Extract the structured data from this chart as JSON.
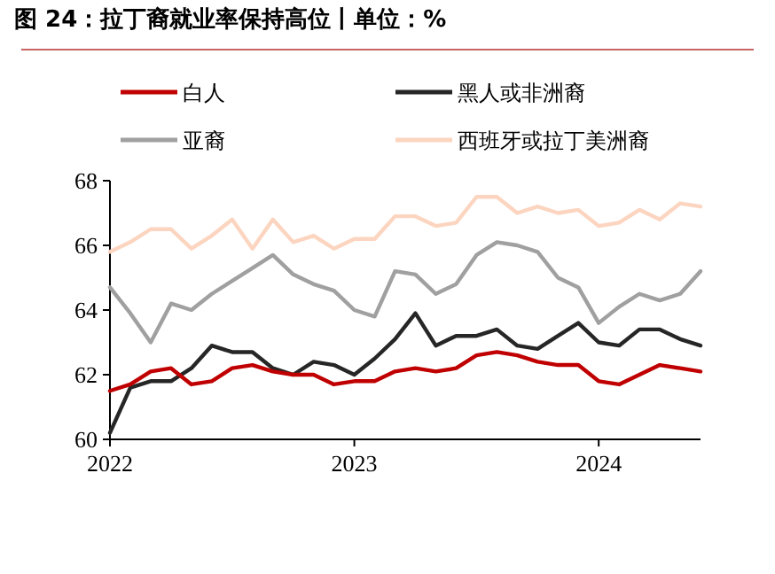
{
  "chart_data": {
    "type": "line",
    "title": "图 24：拉丁裔就业率保持高位丨单位：%",
    "x": [
      "2022-01",
      "2022-02",
      "2022-03",
      "2022-04",
      "2022-05",
      "2022-06",
      "2022-07",
      "2022-08",
      "2022-09",
      "2022-10",
      "2022-11",
      "2022-12",
      "2023-01",
      "2023-02",
      "2023-03",
      "2023-04",
      "2023-05",
      "2023-06",
      "2023-07",
      "2023-08",
      "2023-09",
      "2023-10",
      "2023-11",
      "2023-12",
      "2024-01",
      "2024-02",
      "2024-03",
      "2024-04",
      "2024-05",
      "2024-06"
    ],
    "series": [
      {
        "name": "白人",
        "color": "#c00000",
        "values": [
          61.5,
          61.7,
          62.1,
          62.2,
          61.7,
          61.8,
          62.2,
          62.3,
          62.1,
          62.0,
          62.0,
          61.7,
          61.8,
          61.8,
          62.1,
          62.2,
          62.1,
          62.2,
          62.6,
          62.7,
          62.6,
          62.4,
          62.3,
          62.3,
          61.8,
          61.7,
          62.0,
          62.3,
          62.2,
          62.1
        ]
      },
      {
        "name": "黑人或非洲裔",
        "color": "#262626",
        "values": [
          60.2,
          61.6,
          61.8,
          61.8,
          62.2,
          62.9,
          62.7,
          62.7,
          62.2,
          62.0,
          62.4,
          62.3,
          62.0,
          62.5,
          63.1,
          63.9,
          62.9,
          63.2,
          63.2,
          63.4,
          62.9,
          62.8,
          63.2,
          63.6,
          63.0,
          62.9,
          63.4,
          63.4,
          63.1,
          62.9
        ]
      },
      {
        "name": "亚裔",
        "color": "#a0a0a0",
        "values": [
          64.7,
          63.9,
          63.0,
          64.2,
          64.0,
          64.5,
          64.9,
          65.3,
          65.7,
          65.1,
          64.8,
          64.6,
          64.0,
          63.8,
          65.2,
          65.1,
          64.5,
          64.8,
          65.7,
          66.1,
          66.0,
          65.8,
          65.0,
          64.7,
          63.6,
          64.1,
          64.5,
          64.3,
          64.5,
          65.2
        ]
      },
      {
        "name": "西班牙或拉丁美洲裔",
        "color": "#fcd5c0",
        "values": [
          65.8,
          66.1,
          66.5,
          66.5,
          65.9,
          66.3,
          66.8,
          65.9,
          66.8,
          66.1,
          66.3,
          65.9,
          66.2,
          66.2,
          66.9,
          66.9,
          66.6,
          66.7,
          67.5,
          67.5,
          67.0,
          67.2,
          67.0,
          67.1,
          66.6,
          66.7,
          67.1,
          66.8,
          67.3,
          67.2
        ]
      }
    ],
    "xlim": [
      "2022-01",
      "2024-06"
    ],
    "xticks": [
      "2022",
      "2023",
      "2024"
    ],
    "ylim": [
      60,
      68
    ],
    "yticks": [
      60,
      62,
      64,
      66,
      68
    ],
    "legend": "top",
    "grid": false,
    "marker": "none",
    "line_style": "solid"
  }
}
